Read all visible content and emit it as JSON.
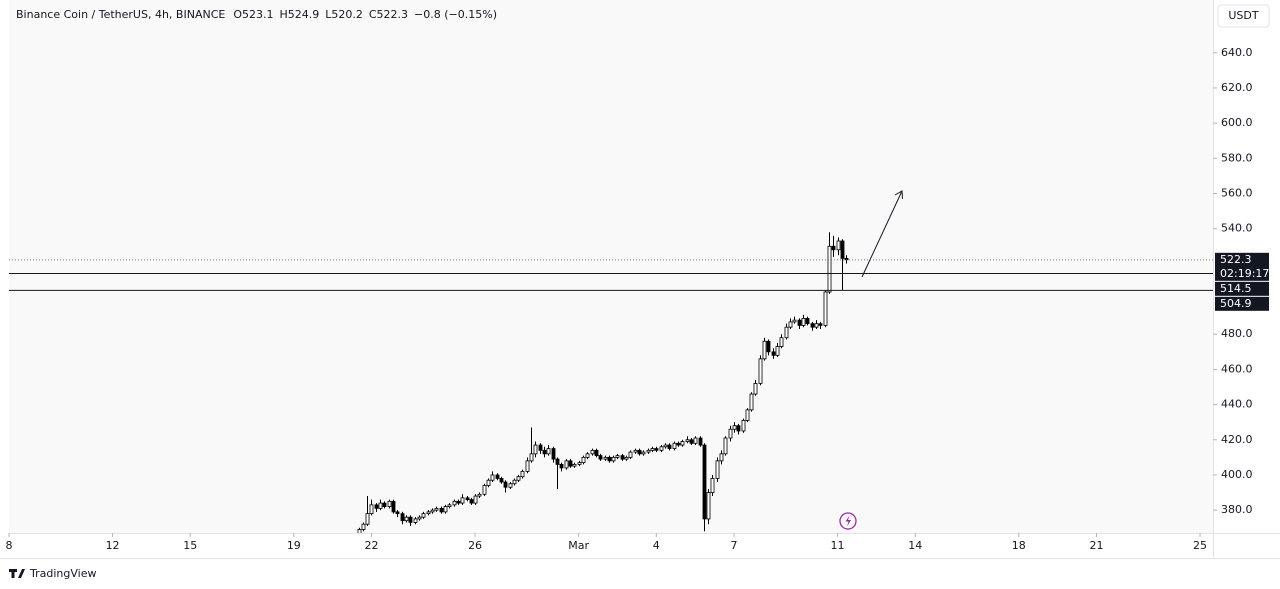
{
  "chart_data": {
    "type": "candlestick",
    "title": "Binance Coin / TetherUS, 4h, BINANCE",
    "ohlc_text": [
      "O523.1",
      "H524.9",
      "L520.2",
      "C522.3",
      "−0.8 (−0.15%)"
    ],
    "currency": "USDT",
    "countdown": "02:19:17",
    "brand": "TradingView",
    "up_color": "#ffffff",
    "down_color": "#000000",
    "xlim": [
      8,
      54.5
    ],
    "xticks": [
      8,
      12,
      15,
      19,
      22,
      26,
      {
        "value": 30,
        "label": "Mar"
      },
      {
        "value": 33,
        "label": "4"
      },
      {
        "value": 36,
        "label": "7"
      },
      {
        "value": 40,
        "label": "11"
      },
      {
        "value": 43,
        "label": "14"
      },
      {
        "value": 47,
        "label": "18"
      },
      {
        "value": 50,
        "label": "21"
      },
      {
        "value": 54,
        "label": "25"
      }
    ],
    "ylim": [
      367,
      670
    ],
    "yticks": [
      {
        "value": 380,
        "label": "380.0"
      },
      {
        "value": 400,
        "label": "400.0"
      },
      {
        "value": 420,
        "label": "420.0"
      },
      {
        "value": 440,
        "label": "440.0"
      },
      {
        "value": 460,
        "label": "460.0"
      },
      {
        "value": 480,
        "label": "480.0"
      },
      {
        "value": 540,
        "label": "540.0"
      },
      {
        "value": 560,
        "label": "560.0"
      },
      {
        "value": 580,
        "label": "580.0"
      },
      {
        "value": 600,
        "label": "600.0"
      },
      {
        "value": 620,
        "label": "620.0"
      },
      {
        "value": 640,
        "label": "640.0"
      }
    ],
    "price_lines": [
      {
        "value": 522.3,
        "style": "dotted"
      },
      {
        "value": 514.5,
        "style": "solid"
      },
      {
        "value": 504.9,
        "style": "solid"
      }
    ],
    "x": [
      21.5,
      21.67,
      21.83,
      22,
      22.17,
      22.33,
      22.5,
      22.67,
      22.83,
      23,
      23.17,
      23.33,
      23.5,
      23.67,
      23.83,
      24,
      24.17,
      24.33,
      24.5,
      24.67,
      24.83,
      25,
      25.17,
      25.33,
      25.5,
      25.67,
      25.83,
      26,
      26.17,
      26.33,
      26.5,
      26.67,
      26.83,
      27,
      27.17,
      27.33,
      27.5,
      27.67,
      27.83,
      28,
      28.17,
      28.33,
      28.5,
      28.67,
      28.83,
      29,
      29.17,
      29.33,
      29.5,
      29.67,
      29.83,
      30,
      30.17,
      30.33,
      30.5,
      30.67,
      30.83,
      31,
      31.17,
      31.33,
      31.5,
      31.67,
      31.83,
      32,
      32.17,
      32.33,
      32.5,
      32.67,
      32.83,
      33,
      33.17,
      33.33,
      33.5,
      33.67,
      33.83,
      34,
      34.17,
      34.33,
      34.5,
      34.67,
      34.83,
      35,
      35.17,
      35.33,
      35.5,
      35.67,
      35.83,
      36,
      36.17,
      36.33,
      36.5,
      36.67,
      36.83,
      37,
      37.17,
      37.33,
      37.5,
      37.67,
      37.83,
      38,
      38.17,
      38.33,
      38.5,
      38.67,
      38.83,
      39,
      39.17,
      39.33,
      39.5,
      39.67,
      39.83,
      40,
      40.17,
      40.33
    ],
    "ohlc": [
      [
        366,
        370,
        364,
        369
      ],
      [
        369,
        373,
        368,
        372
      ],
      [
        372,
        388,
        371,
        378
      ],
      [
        378,
        386,
        377,
        383
      ],
      [
        383,
        384,
        379,
        381
      ],
      [
        381,
        386,
        380,
        384
      ],
      [
        384,
        385,
        381,
        382
      ],
      [
        382,
        386,
        381,
        385
      ],
      [
        385,
        386,
        378,
        379
      ],
      [
        379,
        380,
        376,
        378
      ],
      [
        378,
        379,
        372,
        374
      ],
      [
        374,
        377,
        373,
        376
      ],
      [
        376,
        377,
        371,
        373
      ],
      [
        373,
        376,
        372,
        375
      ],
      [
        375,
        377,
        374,
        376
      ],
      [
        376,
        379,
        375,
        378
      ],
      [
        378,
        380,
        377,
        379
      ],
      [
        379,
        381,
        378,
        380
      ],
      [
        380,
        382,
        379,
        381
      ],
      [
        381,
        382,
        378,
        379
      ],
      [
        379,
        383,
        378,
        382
      ],
      [
        382,
        384,
        381,
        383
      ],
      [
        383,
        386,
        382,
        385
      ],
      [
        385,
        386,
        383,
        384
      ],
      [
        384,
        389,
        383,
        387
      ],
      [
        387,
        388,
        385,
        386
      ],
      [
        386,
        387,
        383,
        384
      ],
      [
        384,
        389,
        383,
        388
      ],
      [
        388,
        390,
        387,
        389
      ],
      [
        389,
        395,
        388,
        394
      ],
      [
        394,
        398,
        393,
        397
      ],
      [
        397,
        402,
        396,
        400
      ],
      [
        400,
        401,
        397,
        398
      ],
      [
        398,
        399,
        395,
        396
      ],
      [
        396,
        397,
        390,
        393
      ],
      [
        393,
        396,
        392,
        395
      ],
      [
        395,
        398,
        394,
        397
      ],
      [
        397,
        400,
        396,
        399
      ],
      [
        399,
        403,
        398,
        402
      ],
      [
        402,
        410,
        401,
        408
      ],
      [
        408,
        427,
        407,
        412
      ],
      [
        412,
        419,
        410,
        417
      ],
      [
        417,
        418,
        412,
        414
      ],
      [
        414,
        416,
        410,
        412
      ],
      [
        412,
        417,
        411,
        415
      ],
      [
        415,
        416,
        407,
        409
      ],
      [
        409,
        410,
        392,
        406
      ],
      [
        406,
        407,
        402,
        404
      ],
      [
        404,
        409,
        403,
        408
      ],
      [
        408,
        409,
        404,
        405
      ],
      [
        405,
        407,
        404,
        406
      ],
      [
        406,
        408,
        405,
        407
      ],
      [
        407,
        411,
        406,
        410
      ],
      [
        410,
        413,
        409,
        412
      ],
      [
        412,
        415,
        411,
        414
      ],
      [
        414,
        415,
        410,
        411
      ],
      [
        411,
        412,
        408,
        409
      ],
      [
        409,
        411,
        408,
        410
      ],
      [
        410,
        411,
        407,
        408
      ],
      [
        408,
        411,
        407,
        410
      ],
      [
        410,
        412,
        409,
        411
      ],
      [
        411,
        412,
        408,
        409
      ],
      [
        409,
        411,
        408,
        410
      ],
      [
        410,
        414,
        409,
        413
      ],
      [
        413,
        415,
        412,
        414
      ],
      [
        414,
        415,
        411,
        412
      ],
      [
        412,
        414,
        411,
        413
      ],
      [
        413,
        415,
        412,
        414
      ],
      [
        414,
        416,
        413,
        415
      ],
      [
        415,
        416,
        413,
        414
      ],
      [
        414,
        417,
        413,
        416
      ],
      [
        416,
        418,
        415,
        417
      ],
      [
        417,
        418,
        414,
        415
      ],
      [
        415,
        419,
        414,
        418
      ],
      [
        418,
        419,
        416,
        417
      ],
      [
        417,
        420,
        416,
        419
      ],
      [
        419,
        422,
        418,
        420
      ],
      [
        420,
        421,
        417,
        418
      ],
      [
        418,
        422,
        417,
        421
      ],
      [
        421,
        422,
        416,
        417
      ],
      [
        417,
        418,
        368,
        375
      ],
      [
        375,
        392,
        372,
        390
      ],
      [
        390,
        400,
        388,
        398
      ],
      [
        398,
        410,
        396,
        408
      ],
      [
        408,
        414,
        406,
        412
      ],
      [
        412,
        422,
        411,
        421
      ],
      [
        421,
        428,
        419,
        426
      ],
      [
        426,
        430,
        424,
        428
      ],
      [
        428,
        429,
        423,
        425
      ],
      [
        425,
        432,
        424,
        431
      ],
      [
        431,
        438,
        430,
        437
      ],
      [
        437,
        447,
        436,
        446
      ],
      [
        446,
        454,
        445,
        452
      ],
      [
        452,
        468,
        451,
        466
      ],
      [
        466,
        478,
        465,
        476
      ],
      [
        476,
        477,
        468,
        470
      ],
      [
        470,
        472,
        466,
        468
      ],
      [
        468,
        475,
        467,
        473
      ],
      [
        473,
        480,
        472,
        478
      ],
      [
        478,
        486,
        477,
        484
      ],
      [
        484,
        489,
        483,
        487
      ],
      [
        487,
        490,
        486,
        488
      ],
      [
        488,
        489,
        483,
        485
      ],
      [
        485,
        491,
        484,
        489
      ],
      [
        489,
        490,
        485,
        486
      ],
      [
        486,
        487,
        482,
        484
      ],
      [
        484,
        488,
        483,
        486
      ],
      [
        486,
        487,
        483,
        485
      ],
      [
        485,
        505,
        484,
        504
      ],
      [
        504,
        538,
        503,
        530
      ],
      [
        530,
        536,
        524,
        528
      ],
      [
        528,
        535,
        525,
        533
      ],
      [
        533,
        534,
        505,
        523.1
      ],
      [
        523.1,
        524.9,
        520.2,
        522.3
      ]
    ]
  }
}
